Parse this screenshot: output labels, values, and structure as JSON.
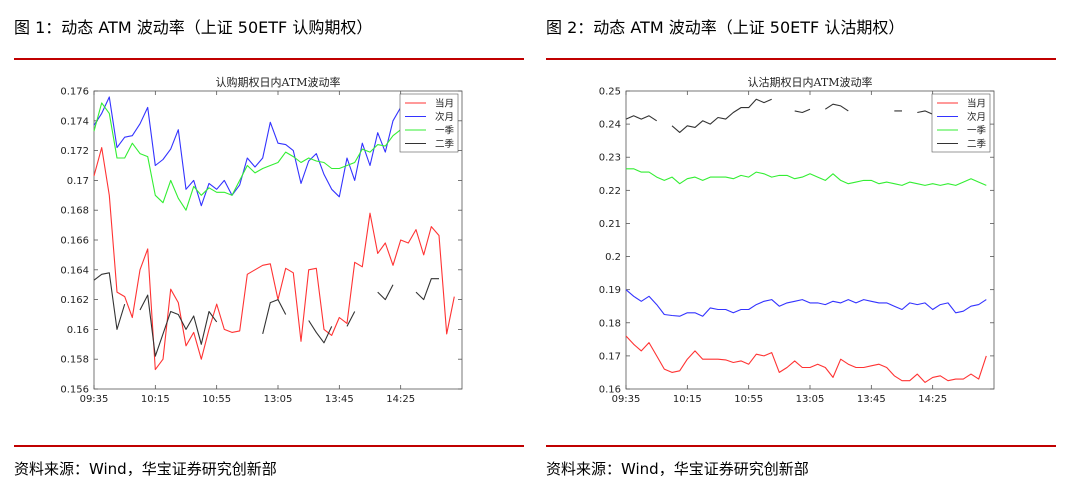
{
  "left": {
    "figure_title": "图 1：动态 ATM 波动率（上证 50ETF 认购期权）",
    "source": "资料来源：Wind，华宝证券研究创新部"
  },
  "right": {
    "figure_title": "图 2：动态 ATM 波动率（上证 50ETF 认沽期权）",
    "source": "资料来源：Wind，华宝证券研究创新部"
  },
  "colors": {
    "rule": "#c00000",
    "series": [
      "#ff3333",
      "#3333ff",
      "#33ee33",
      "#333333"
    ]
  },
  "chart_data": [
    {
      "type": "line",
      "title": "认购期权日内ATM波动率",
      "xlabel": "",
      "ylabel": "",
      "x_tick_labels": [
        "09:35",
        "10:15",
        "10:55",
        "13:05",
        "13:45",
        "14:25"
      ],
      "x_tick_positions": [
        0,
        8,
        16,
        24,
        32,
        40
      ],
      "xlim": [
        0,
        48
      ],
      "ylim": [
        0.156,
        0.176
      ],
      "y_ticks": [
        0.156,
        0.158,
        0.16,
        0.162,
        0.164,
        0.166,
        0.168,
        0.17,
        0.172,
        0.174,
        0.176
      ],
      "legend_position": "top-right",
      "grid": false,
      "series": [
        {
          "name": "当月",
          "color": "#ff3333",
          "values": [
            0.1703,
            0.1722,
            0.169,
            0.1625,
            0.1622,
            0.1608,
            0.164,
            0.1654,
            0.1573,
            0.158,
            0.1627,
            0.1618,
            0.1589,
            0.1598,
            0.158,
            0.16,
            0.1617,
            0.16,
            0.1598,
            0.1599,
            0.1637,
            0.164,
            0.1643,
            0.1644,
            0.162,
            0.1641,
            0.1638,
            0.1592,
            0.164,
            0.1641,
            0.16,
            0.1596,
            0.1608,
            0.1604,
            0.1645,
            0.1642,
            0.1678,
            0.1651,
            0.1658,
            0.1643,
            0.166,
            0.1658,
            0.1667,
            0.165,
            0.1669,
            0.1663,
            0.1597,
            0.1622
          ]
        },
        {
          "name": "次月",
          "color": "#3333ff",
          "values": [
            0.1737,
            0.1745,
            0.1756,
            0.1722,
            0.1729,
            0.173,
            0.1738,
            0.1749,
            0.171,
            0.1714,
            0.1721,
            0.1734,
            0.1694,
            0.17,
            0.1683,
            0.1698,
            0.1694,
            0.17,
            0.169,
            0.1697,
            0.1715,
            0.1709,
            0.1715,
            0.1739,
            0.1725,
            0.1724,
            0.172,
            0.1698,
            0.1713,
            0.1718,
            0.1704,
            0.1694,
            0.1689,
            0.1715,
            0.17,
            0.1725,
            0.171,
            0.1732,
            0.1719,
            0.174,
            0.1749,
            0.1757,
            0.1745,
            0.1753,
            0.1752,
            0.1754,
            0.1749,
            0.1748
          ]
        },
        {
          "name": "一季",
          "color": "#33ee33",
          "values": [
            0.1733,
            0.1752,
            0.1745,
            0.1715,
            0.1715,
            0.1725,
            0.1718,
            0.1716,
            0.169,
            0.1685,
            0.17,
            0.1688,
            0.168,
            0.1696,
            0.169,
            0.1695,
            0.1692,
            0.1692,
            0.169,
            0.17,
            0.171,
            0.1705,
            0.1708,
            0.171,
            0.1712,
            0.1719,
            0.1716,
            0.1712,
            0.1715,
            0.1713,
            0.1712,
            0.1708,
            0.1708,
            0.171,
            0.1712,
            0.1721,
            0.1719,
            0.1724,
            0.1723,
            0.173,
            0.1734,
            0.173,
            0.1737,
            0.1737,
            0.1735,
            0.1738,
            0.1735,
            0.1735
          ]
        },
        {
          "name": "二季",
          "color": "#333333",
          "values": [
            0.1633,
            0.1637,
            0.1638,
            0.16,
            0.1617,
            null,
            0.1613,
            0.1623,
            0.1582,
            0.1597,
            0.1612,
            0.161,
            0.16,
            0.1609,
            0.159,
            0.1612,
            0.1605,
            null,
            null,
            null,
            null,
            null,
            0.1597,
            0.1618,
            0.162,
            0.161,
            null,
            null,
            0.1606,
            0.1598,
            0.1591,
            0.1602,
            null,
            0.1602,
            0.1612,
            null,
            null,
            0.1625,
            0.162,
            0.163,
            null,
            null,
            0.1625,
            0.162,
            0.1634,
            0.1634,
            null,
            null
          ]
        }
      ]
    },
    {
      "type": "line",
      "title": "认沽期权日内ATM波动率",
      "xlabel": "",
      "ylabel": "",
      "x_tick_labels": [
        "09:35",
        "10:15",
        "10:55",
        "13:05",
        "13:45",
        "14:25"
      ],
      "x_tick_positions": [
        0,
        8,
        16,
        24,
        32,
        40
      ],
      "xlim": [
        0,
        48
      ],
      "ylim": [
        0.16,
        0.25
      ],
      "y_ticks": [
        0.16,
        0.17,
        0.18,
        0.19,
        0.2,
        0.21,
        0.22,
        0.23,
        0.24,
        0.25
      ],
      "y_tick_labels": [
        "0.16",
        "0.17",
        "0.18",
        "0.19",
        "0.2",
        "0.21",
        "0.22",
        "0.23",
        "0.24",
        "0.25"
      ],
      "legend_position": "top-right",
      "grid": false,
      "series": [
        {
          "name": "当月",
          "color": "#ff3333",
          "values": [
            0.176,
            0.1735,
            0.1715,
            0.174,
            0.17,
            0.166,
            0.165,
            0.1655,
            0.169,
            0.1715,
            0.169,
            0.169,
            0.169,
            0.1688,
            0.168,
            0.1685,
            0.1675,
            0.1705,
            0.17,
            0.171,
            0.165,
            0.1665,
            0.1685,
            0.1665,
            0.1665,
            0.1675,
            0.1665,
            0.1635,
            0.169,
            0.1675,
            0.1665,
            0.1665,
            0.167,
            0.1675,
            0.1665,
            0.164,
            0.1625,
            0.1625,
            0.1645,
            0.162,
            0.1635,
            0.164,
            0.1625,
            0.163,
            0.163,
            0.1645,
            0.163,
            0.17
          ]
        },
        {
          "name": "次月",
          "color": "#3333ff",
          "values": [
            0.19,
            0.188,
            0.1865,
            0.188,
            0.1855,
            0.1825,
            0.1822,
            0.182,
            0.183,
            0.183,
            0.182,
            0.1845,
            0.184,
            0.184,
            0.183,
            0.184,
            0.184,
            0.1855,
            0.1865,
            0.187,
            0.185,
            0.186,
            0.1865,
            0.187,
            0.186,
            0.186,
            0.1855,
            0.1865,
            0.186,
            0.187,
            0.186,
            0.187,
            0.1865,
            0.186,
            0.186,
            0.185,
            0.184,
            0.186,
            0.1855,
            0.186,
            0.184,
            0.1855,
            0.186,
            0.183,
            0.1835,
            0.185,
            0.1855,
            0.187
          ]
        },
        {
          "name": "一季",
          "color": "#33ee33",
          "values": [
            0.2265,
            0.2265,
            0.2255,
            0.2255,
            0.224,
            0.223,
            0.224,
            0.222,
            0.2235,
            0.224,
            0.223,
            0.224,
            0.224,
            0.224,
            0.2235,
            0.2245,
            0.224,
            0.2255,
            0.225,
            0.224,
            0.2245,
            0.2245,
            0.2235,
            0.224,
            0.225,
            0.224,
            0.223,
            0.225,
            0.223,
            0.222,
            0.2225,
            0.223,
            0.223,
            0.222,
            0.2225,
            0.222,
            0.2215,
            0.2225,
            0.222,
            0.2215,
            0.222,
            0.2215,
            0.222,
            0.2215,
            0.2225,
            0.2235,
            0.2225,
            0.2215
          ]
        },
        {
          "name": "二季",
          "color": "#333333",
          "values": [
            0.2415,
            0.2425,
            0.2415,
            0.2425,
            0.241,
            null,
            0.2395,
            0.2375,
            0.2395,
            0.239,
            0.241,
            0.24,
            0.242,
            0.2415,
            0.2435,
            0.245,
            0.245,
            0.2475,
            0.2465,
            0.2475,
            null,
            null,
            0.244,
            0.2435,
            0.2445,
            null,
            0.2445,
            0.246,
            0.2455,
            0.244,
            null,
            null,
            null,
            null,
            null,
            0.244,
            0.244,
            null,
            0.2435,
            0.244,
            0.243,
            0.244,
            null,
            null,
            null,
            null,
            null,
            null
          ]
        }
      ]
    }
  ]
}
